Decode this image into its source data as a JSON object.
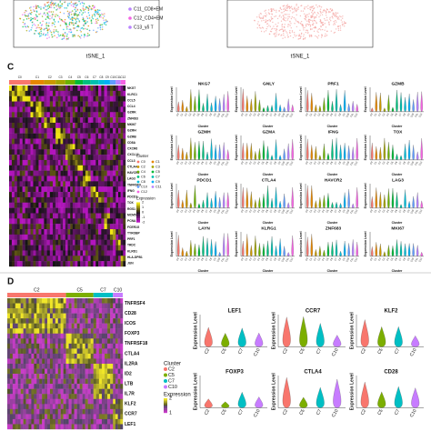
{
  "panel_top": {
    "legend": [
      "C11_CD8+EM",
      "C12_CD4+EM",
      "C13_γδ T"
    ],
    "x_axis_left": "tSNE_1",
    "x_axis_right": "tSNE_1"
  },
  "panel_c": {
    "label": "C",
    "clusters": [
      "C0",
      "C1",
      "C2",
      "C3",
      "C4",
      "C5",
      "C6",
      "C7",
      "C8",
      "C9",
      "C10",
      "C11",
      "C12"
    ],
    "cluster_colors": [
      "#f8766d",
      "#e58700",
      "#c99800",
      "#a3a500",
      "#6bb100",
      "#00ba38",
      "#00bf7d",
      "#00c0af",
      "#00bcd8",
      "#00b0f6",
      "#619cff",
      "#b983ff",
      "#f564e3"
    ],
    "genes": [
      "NKG7",
      "KLRC1",
      "CCL5",
      "CCL4",
      "GZMK",
      "ZNF683",
      "MKI67",
      "GZMH",
      "GZMB",
      "CD8A",
      "CXCR6",
      "CXCL13",
      "CCL3",
      "CTLA4",
      "HAVCR2",
      "LAG3",
      "TNFRSF9",
      "IFNG",
      "PDCD1",
      "TOX",
      "RGS1",
      "MCM5",
      "PCNA",
      "FCER1G",
      "TYROBP",
      "PRF1",
      "TRDC",
      "KLRD1",
      "HLA-DPB1",
      "JUN"
    ],
    "legend_cluster_title": "Cluster",
    "expression_title": "Expression",
    "expression_ticks": [
      "2",
      "1",
      "0",
      "-1",
      "-2"
    ],
    "violin_genes": [
      "NKG7",
      "GNLY",
      "PRF1",
      "GZMB",
      "GZMH",
      "GZMA",
      "IFNG",
      "TOX",
      "PDCD1",
      "CTLA4",
      "HAVCR2",
      "LAG3",
      "LAYN",
      "KLRG1",
      "ZNF683",
      "MKI67"
    ],
    "y_label": "Expression Level",
    "x_label": "Cluster"
  },
  "panel_d": {
    "label": "D",
    "clusters": [
      "C2",
      "C5",
      "C7",
      "C10"
    ],
    "cluster_colors": [
      "#f8766d",
      "#7cae00",
      "#00bfc4",
      "#c77cff"
    ],
    "genes": [
      "TNFRSF4",
      "CD28",
      "ICOS",
      "FOXP3",
      "TNFRSF18",
      "CTLA4",
      "IL2RA",
      "ID2",
      "LTB",
      "IL7R",
      "KLF2",
      "CCR7",
      "LEF1"
    ],
    "legend_cluster_title": "Cluster",
    "expression_title": "Expression",
    "expression_ticks": [
      "2",
      "1"
    ],
    "violin_genes": [
      "LEF1",
      "CCR7",
      "KLF2",
      "FOXP3",
      "CTLA4",
      "CD28"
    ],
    "y_label": "Expression Level"
  }
}
